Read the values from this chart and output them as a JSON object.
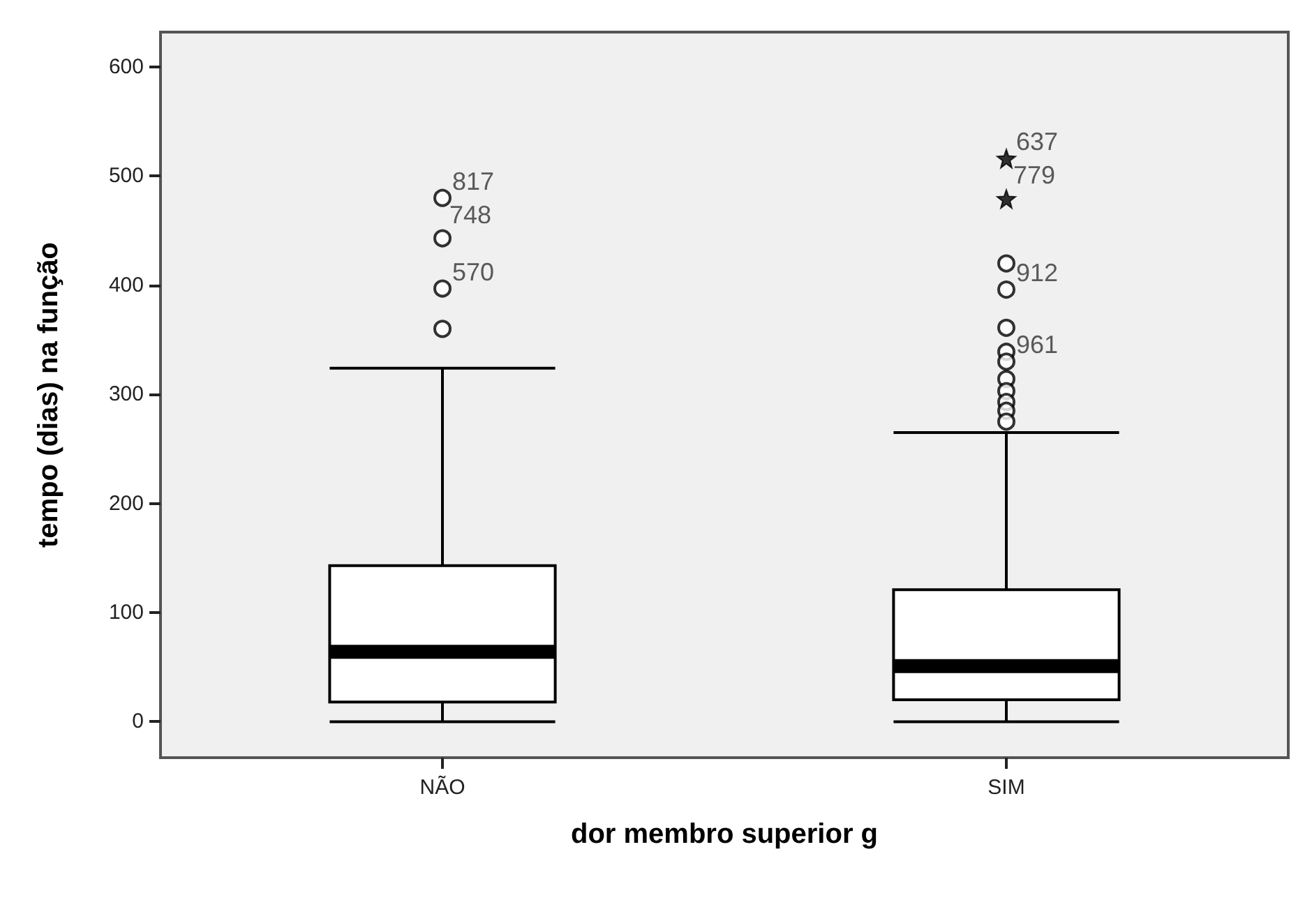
{
  "chart_data": {
    "type": "box",
    "xlabel": "dor membro superior g",
    "ylabel": "tempo (dias) na função",
    "categories": [
      "NÃO",
      "SIM"
    ],
    "boxes": [
      {
        "low": 0,
        "q1": 18,
        "median": 64,
        "q3": 143,
        "high": 324
      },
      {
        "low": 0,
        "q1": 20,
        "median": 51,
        "q3": 121,
        "high": 265
      }
    ],
    "series": [
      {
        "type": "scatter",
        "marker": "circle",
        "color": "#000000",
        "x": [
          "NÃO",
          "NÃO",
          "NÃO",
          "NÃO",
          "SIM",
          "SIM",
          "SIM",
          "SIM",
          "SIM",
          "SIM",
          "SIM",
          "SIM",
          "SIM",
          "SIM"
        ],
        "values": [
          480,
          443,
          397,
          360,
          420,
          396,
          361,
          339,
          330,
          314,
          303,
          293,
          285,
          275
        ]
      },
      {
        "type": "scatter",
        "marker": "star",
        "color": "#000000",
        "x": [
          "SIM",
          "SIM"
        ],
        "values": [
          516,
          479
        ]
      }
    ],
    "annotations": [
      {
        "text": "817",
        "x": "NÃO",
        "y": 480
      },
      {
        "text": "748",
        "x": "NÃO",
        "y": 480
      },
      {
        "text": "570",
        "x": "NÃO",
        "y": 397
      },
      {
        "text": "637",
        "x": "SIM",
        "y": 516
      },
      {
        "text": "779",
        "x": "SIM",
        "y": 516
      },
      {
        "text": "912",
        "x": "SIM",
        "y": 396
      },
      {
        "text": "961",
        "x": "SIM",
        "y": 330
      }
    ],
    "ylim": [
      -33,
      632
    ],
    "yticks": [
      0,
      100,
      200,
      300,
      400,
      500,
      600
    ],
    "grid": false
  }
}
